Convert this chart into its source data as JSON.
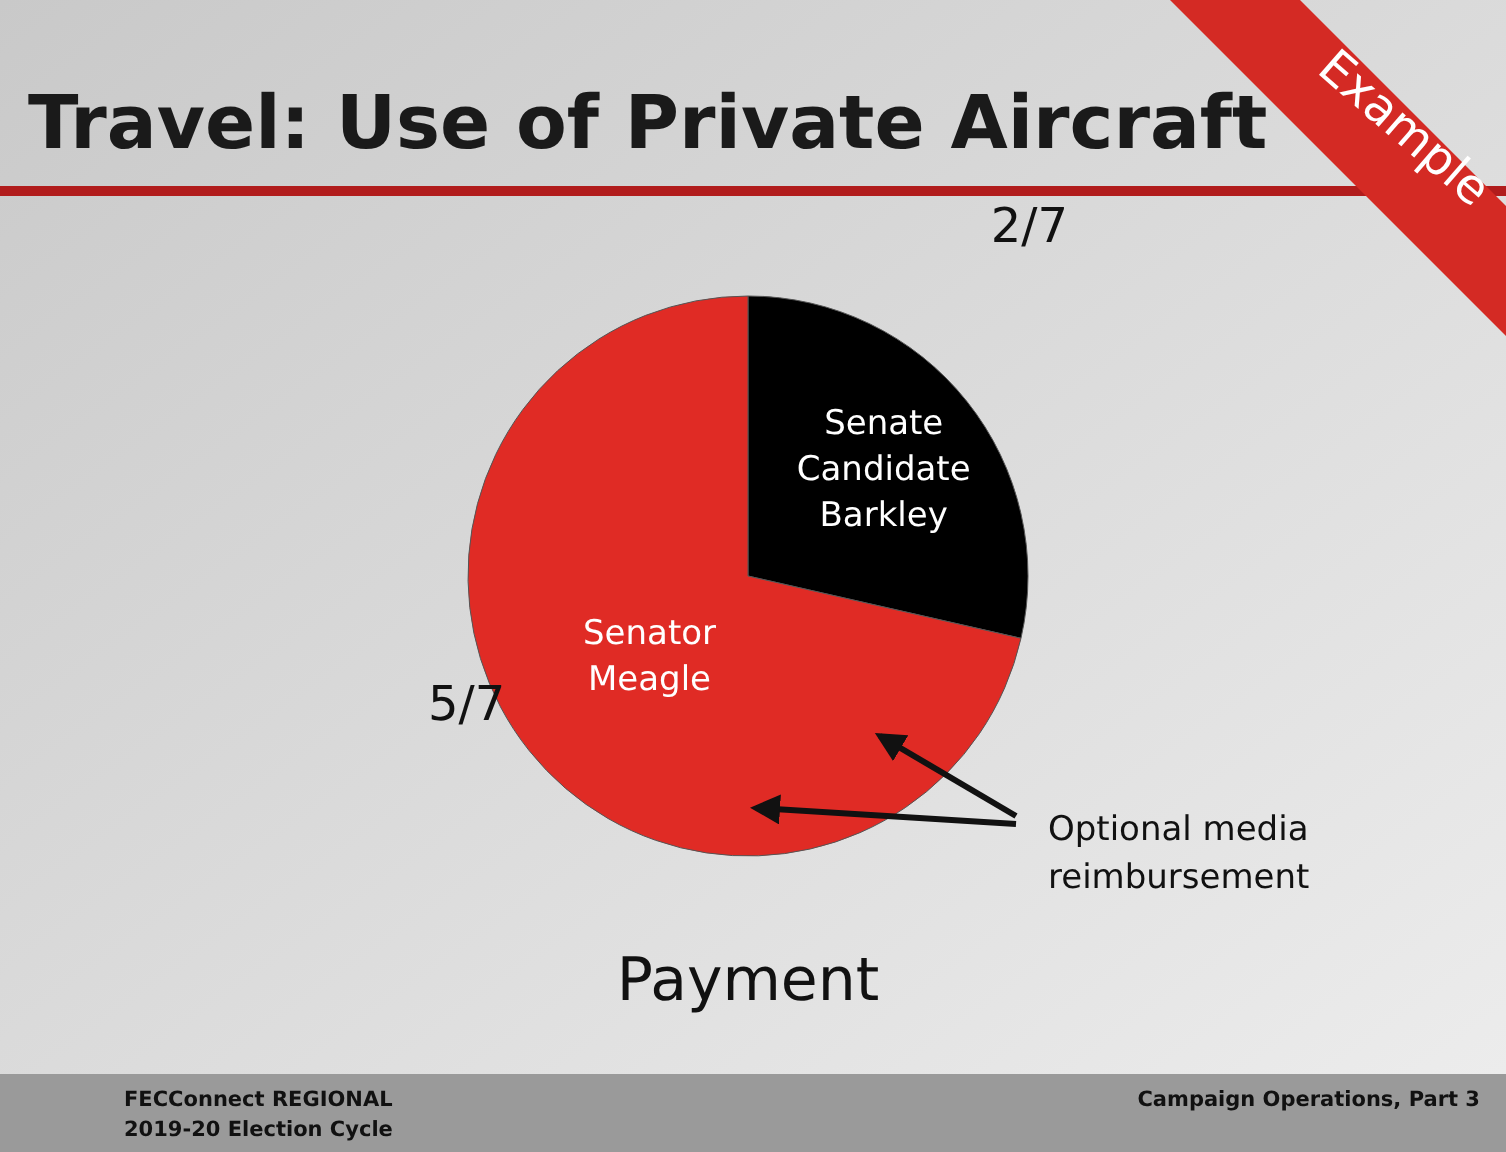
{
  "chart_data": {
    "type": "pie",
    "title": "Travel: Use of Private Aircraft",
    "xlabel": "Payment",
    "categories": [
      "Senate Candidate Barkley",
      "Senator Meagle"
    ],
    "values": [
      28.57,
      71.43
    ],
    "value_labels": [
      "2/7",
      "5/7"
    ],
    "colors": [
      "#000000",
      "#e02b25"
    ],
    "legend": false,
    "annotations": [
      "Optional media reimbursement",
      "Example",
      "FECConnect REGIONAL",
      "2019-20 Election Cycle",
      "Campaign Operations, Part 3"
    ]
  }
}
